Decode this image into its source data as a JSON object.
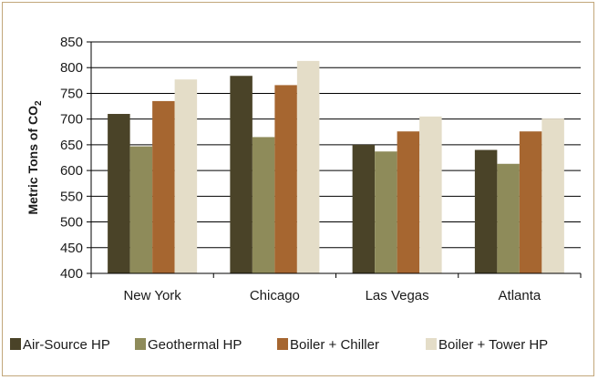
{
  "chart_data": {
    "type": "bar",
    "categories": [
      "New York",
      "Chicago",
      "Las Vegas",
      "Atlanta"
    ],
    "series": [
      {
        "name": "Air-Source HP",
        "color": "#4a4328",
        "values": [
          710,
          784,
          650,
          640
        ]
      },
      {
        "name": "Geothermal HP",
        "color": "#8e8b5a",
        "values": [
          647,
          665,
          637,
          613
        ]
      },
      {
        "name": "Boiler + Chiller",
        "color": "#a66630",
        "values": [
          735,
          766,
          676,
          676
        ]
      },
      {
        "name": "Boiler + Tower HP",
        "color": "#e4ddc8",
        "values": [
          777,
          813,
          705,
          701
        ]
      }
    ],
    "ylabel": "Metric Tons of CO",
    "ylabel_subscript": "2",
    "ylim": [
      400,
      850
    ],
    "yticks": [
      400,
      450,
      500,
      550,
      600,
      650,
      700,
      750,
      800,
      850
    ],
    "grid": true,
    "legend_position": "bottom"
  }
}
